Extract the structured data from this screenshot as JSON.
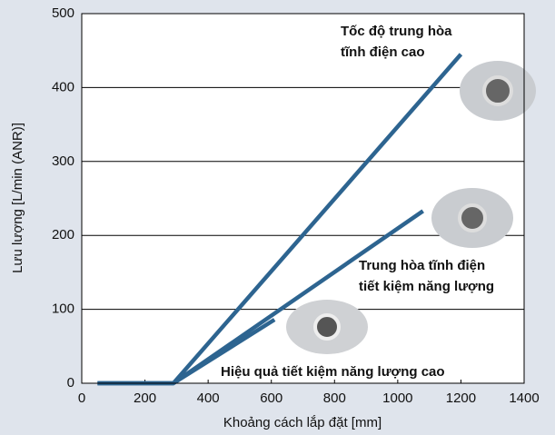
{
  "chart_data": {
    "type": "line",
    "xlabel": "Khoảng cách lắp đặt [mm]",
    "ylabel": "Lưu lượng [L/min (ANR)]",
    "xlim": [
      0,
      1400
    ],
    "xticks": [
      0,
      200,
      400,
      600,
      800,
      1000,
      1200,
      1400
    ],
    "ylim": [
      0,
      500
    ],
    "yticks": [
      0,
      100,
      200,
      300,
      400,
      500
    ],
    "grid": true,
    "series": [
      {
        "color": "#2d6490",
        "x": [
          50,
          290,
          1200
        ],
        "values": [
          0,
          0,
          445
        ]
      },
      {
        "color": "#2d6490",
        "x": [
          50,
          290,
          1080
        ],
        "values": [
          0,
          0,
          233
        ]
      },
      {
        "color": "#2d6490",
        "x": [
          50,
          290,
          610
        ],
        "values": [
          0,
          0,
          86
        ]
      }
    ],
    "annotations": [
      [
        "Tốc độ trung hòa",
        "tĩnh điện cao"
      ],
      [
        "Trung hòa tĩnh điện",
        "tiết kiệm năng lượng"
      ],
      [
        "Hiệu quả tiết kiệm năng lượng cao"
      ]
    ]
  }
}
